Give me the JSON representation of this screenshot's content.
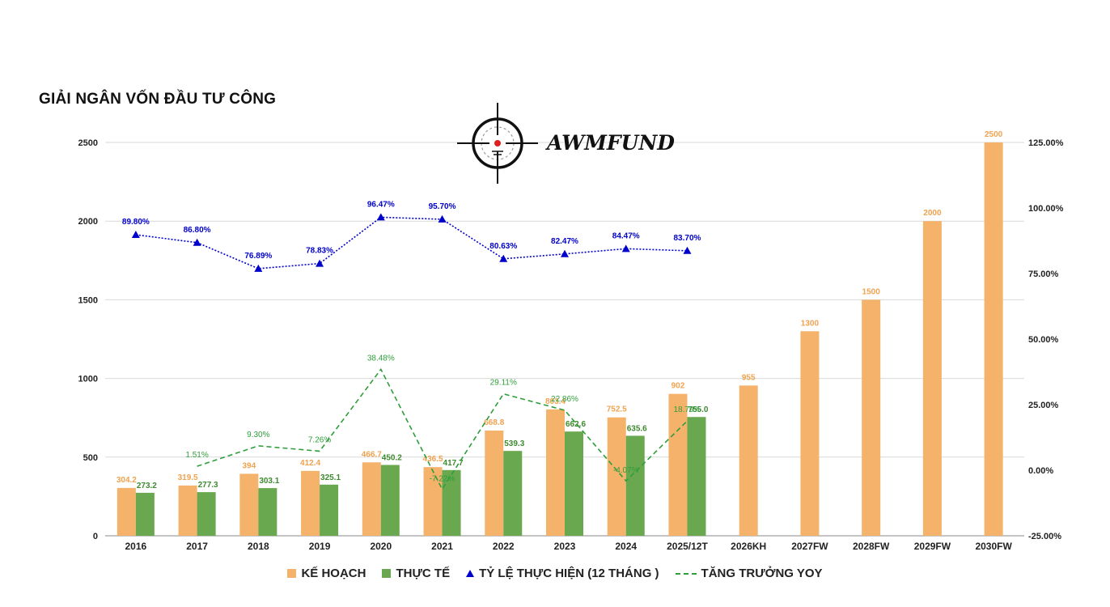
{
  "title": "GIẢI NGÂN VỐN ĐẦU TƯ CÔNG",
  "logo": {
    "text": "AWMFUND",
    "icon": "crosshair-icon"
  },
  "legend": {
    "plan": "KẾ HOẠCH",
    "actual": "THỰC TẾ",
    "rate": "TỶ LỆ THỰC HIỆN (12 THÁNG )",
    "yoy": "TĂNG TRƯỞNG YOY"
  },
  "chart_data": {
    "type": "bar",
    "categories": [
      "2016",
      "2017",
      "2018",
      "2019",
      "2020",
      "2021",
      "2022",
      "2023",
      "2024",
      "2025/12T",
      "2026KH",
      "2027FW",
      "2028FW",
      "2029FW",
      "2030FW"
    ],
    "left_axis": {
      "ylim": [
        0,
        2500
      ],
      "ticks": [
        "0",
        "500",
        "1000",
        "1500",
        "2000",
        "2500"
      ]
    },
    "right_axis": {
      "ylim": [
        -25,
        125
      ],
      "ticks": [
        "-25.00%",
        "0.00%",
        "25.00%",
        "50.00%",
        "75.00%",
        "100.00%",
        "125.00%"
      ]
    },
    "legend_position": "bottom",
    "grid": true,
    "series": [
      {
        "name": "KẾ HOẠCH",
        "kind": "bar",
        "color": "#f4b26b",
        "axis": "left",
        "values": [
          304.2,
          319.5,
          394,
          412.4,
          466.7,
          436.5,
          668.8,
          803.4,
          752.5,
          902,
          955,
          1300,
          1500,
          2000,
          2500
        ],
        "labels": [
          "304.2",
          "319.5",
          "394",
          "412.4",
          "466.7",
          "436.5",
          "668.8",
          "803.4",
          "752.5",
          "902",
          "955",
          "1300",
          "1500",
          "2000",
          "2500"
        ]
      },
      {
        "name": "THỰC TẾ",
        "kind": "bar",
        "color": "#6aa84f",
        "axis": "left",
        "values": [
          273.2,
          277.3,
          303.1,
          325.1,
          450.2,
          417.7,
          539.3,
          662.6,
          635.6,
          755.0,
          null,
          null,
          null,
          null,
          null
        ],
        "labels": [
          "273.2",
          "277.3",
          "303.1",
          "325.1",
          "450.2",
          "417.7",
          "539.3",
          "662.6",
          "635.6",
          "755.0",
          "",
          "",
          "",
          "",
          ""
        ]
      },
      {
        "name": "TỶ LỆ THỰC HIỆN (12 THÁNG )",
        "kind": "line-dotted-triangle",
        "color": "#0000cc",
        "axis": "right",
        "values": [
          89.8,
          86.8,
          76.89,
          78.83,
          96.47,
          95.7,
          80.63,
          82.47,
          84.47,
          83.7,
          null,
          null,
          null,
          null,
          null
        ],
        "labels": [
          "89.80%",
          "86.80%",
          "76.89%",
          "78.83%",
          "96.47%",
          "95.70%",
          "80.63%",
          "82.47%",
          "84.47%",
          "83.70%",
          "",
          "",
          "",
          "",
          ""
        ]
      },
      {
        "name": "TĂNG TRƯỞNG YOY",
        "kind": "line-dashed",
        "color": "#2e9e3a",
        "axis": "right",
        "values": [
          null,
          1.51,
          9.3,
          7.26,
          38.48,
          -7.22,
          29.11,
          22.86,
          -4.07,
          18.79,
          null,
          null,
          null,
          null,
          null
        ],
        "labels": [
          "",
          "1.51%",
          "9.30%",
          "7.26%",
          "38.48%",
          "-7.22%",
          "29.11%",
          "22.86%",
          "-4.07%",
          "18.79%",
          "",
          "",
          "",
          "",
          ""
        ]
      }
    ]
  }
}
